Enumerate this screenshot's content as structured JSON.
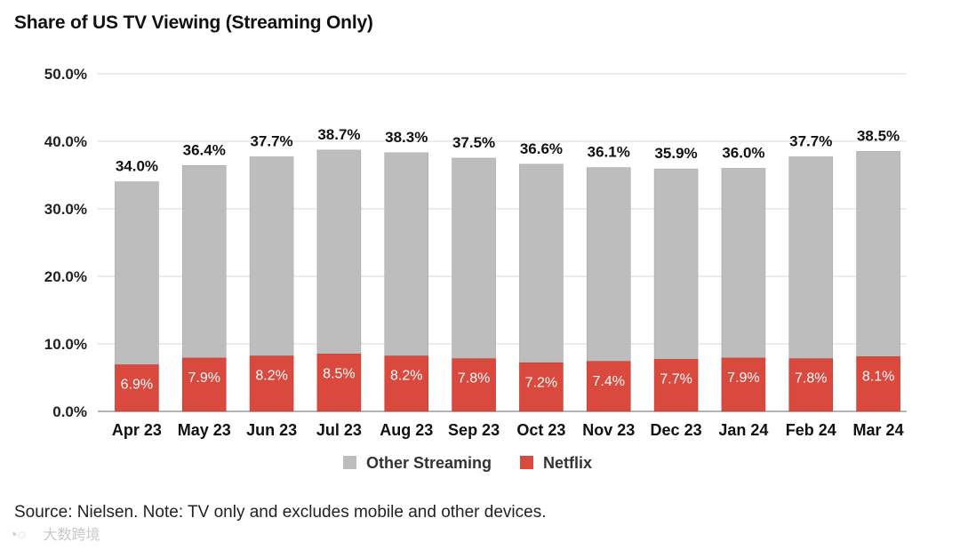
{
  "chart_data": {
    "type": "bar",
    "stacked": true,
    "title": "Share of US TV Viewing (Streaming Only)",
    "categories": [
      "Apr 23",
      "May 23",
      "Jun 23",
      "Jul 23",
      "Aug 23",
      "Sep 23",
      "Oct 23",
      "Nov 23",
      "Dec 23",
      "Jan 24",
      "Feb 24",
      "Mar 24"
    ],
    "totals": [
      34.0,
      36.4,
      37.7,
      38.7,
      38.3,
      37.5,
      36.6,
      36.1,
      35.9,
      36.0,
      37.7,
      38.5
    ],
    "total_labels": [
      "34.0%",
      "36.4%",
      "37.7%",
      "38.7%",
      "38.3%",
      "37.5%",
      "36.6%",
      "36.1%",
      "35.9%",
      "36.0%",
      "37.7%",
      "38.5%"
    ],
    "series": [
      {
        "name": "Netflix",
        "color": "#d9493d",
        "values": [
          6.9,
          7.9,
          8.2,
          8.5,
          8.2,
          7.8,
          7.2,
          7.4,
          7.7,
          7.9,
          7.8,
          8.1
        ],
        "labels": [
          "6.9%",
          "7.9%",
          "8.2%",
          "8.5%",
          "8.2%",
          "7.8%",
          "7.2%",
          "7.4%",
          "7.7%",
          "7.9%",
          "7.8%",
          "8.1%"
        ]
      },
      {
        "name": "Other Streaming",
        "color": "#bdbdbd",
        "values": [
          27.1,
          28.5,
          29.5,
          30.2,
          30.1,
          29.7,
          29.4,
          28.7,
          28.2,
          28.1,
          29.9,
          30.4
        ]
      }
    ],
    "yticks": [
      0,
      10,
      20,
      30,
      40,
      50
    ],
    "ytick_labels": [
      "0.0%",
      "10.0%",
      "20.0%",
      "30.0%",
      "40.0%",
      "50.0%"
    ],
    "ylim": [
      0,
      50
    ],
    "xlabel": "",
    "ylabel": "",
    "legend": [
      "Other Streaming",
      "Netflix"
    ],
    "legend_position": "bottom-center",
    "grid": true
  },
  "footer": {
    "source": "Source: Nielsen. Note: TV only and excludes mobile and other devices.",
    "watermark": "大数跨境"
  }
}
